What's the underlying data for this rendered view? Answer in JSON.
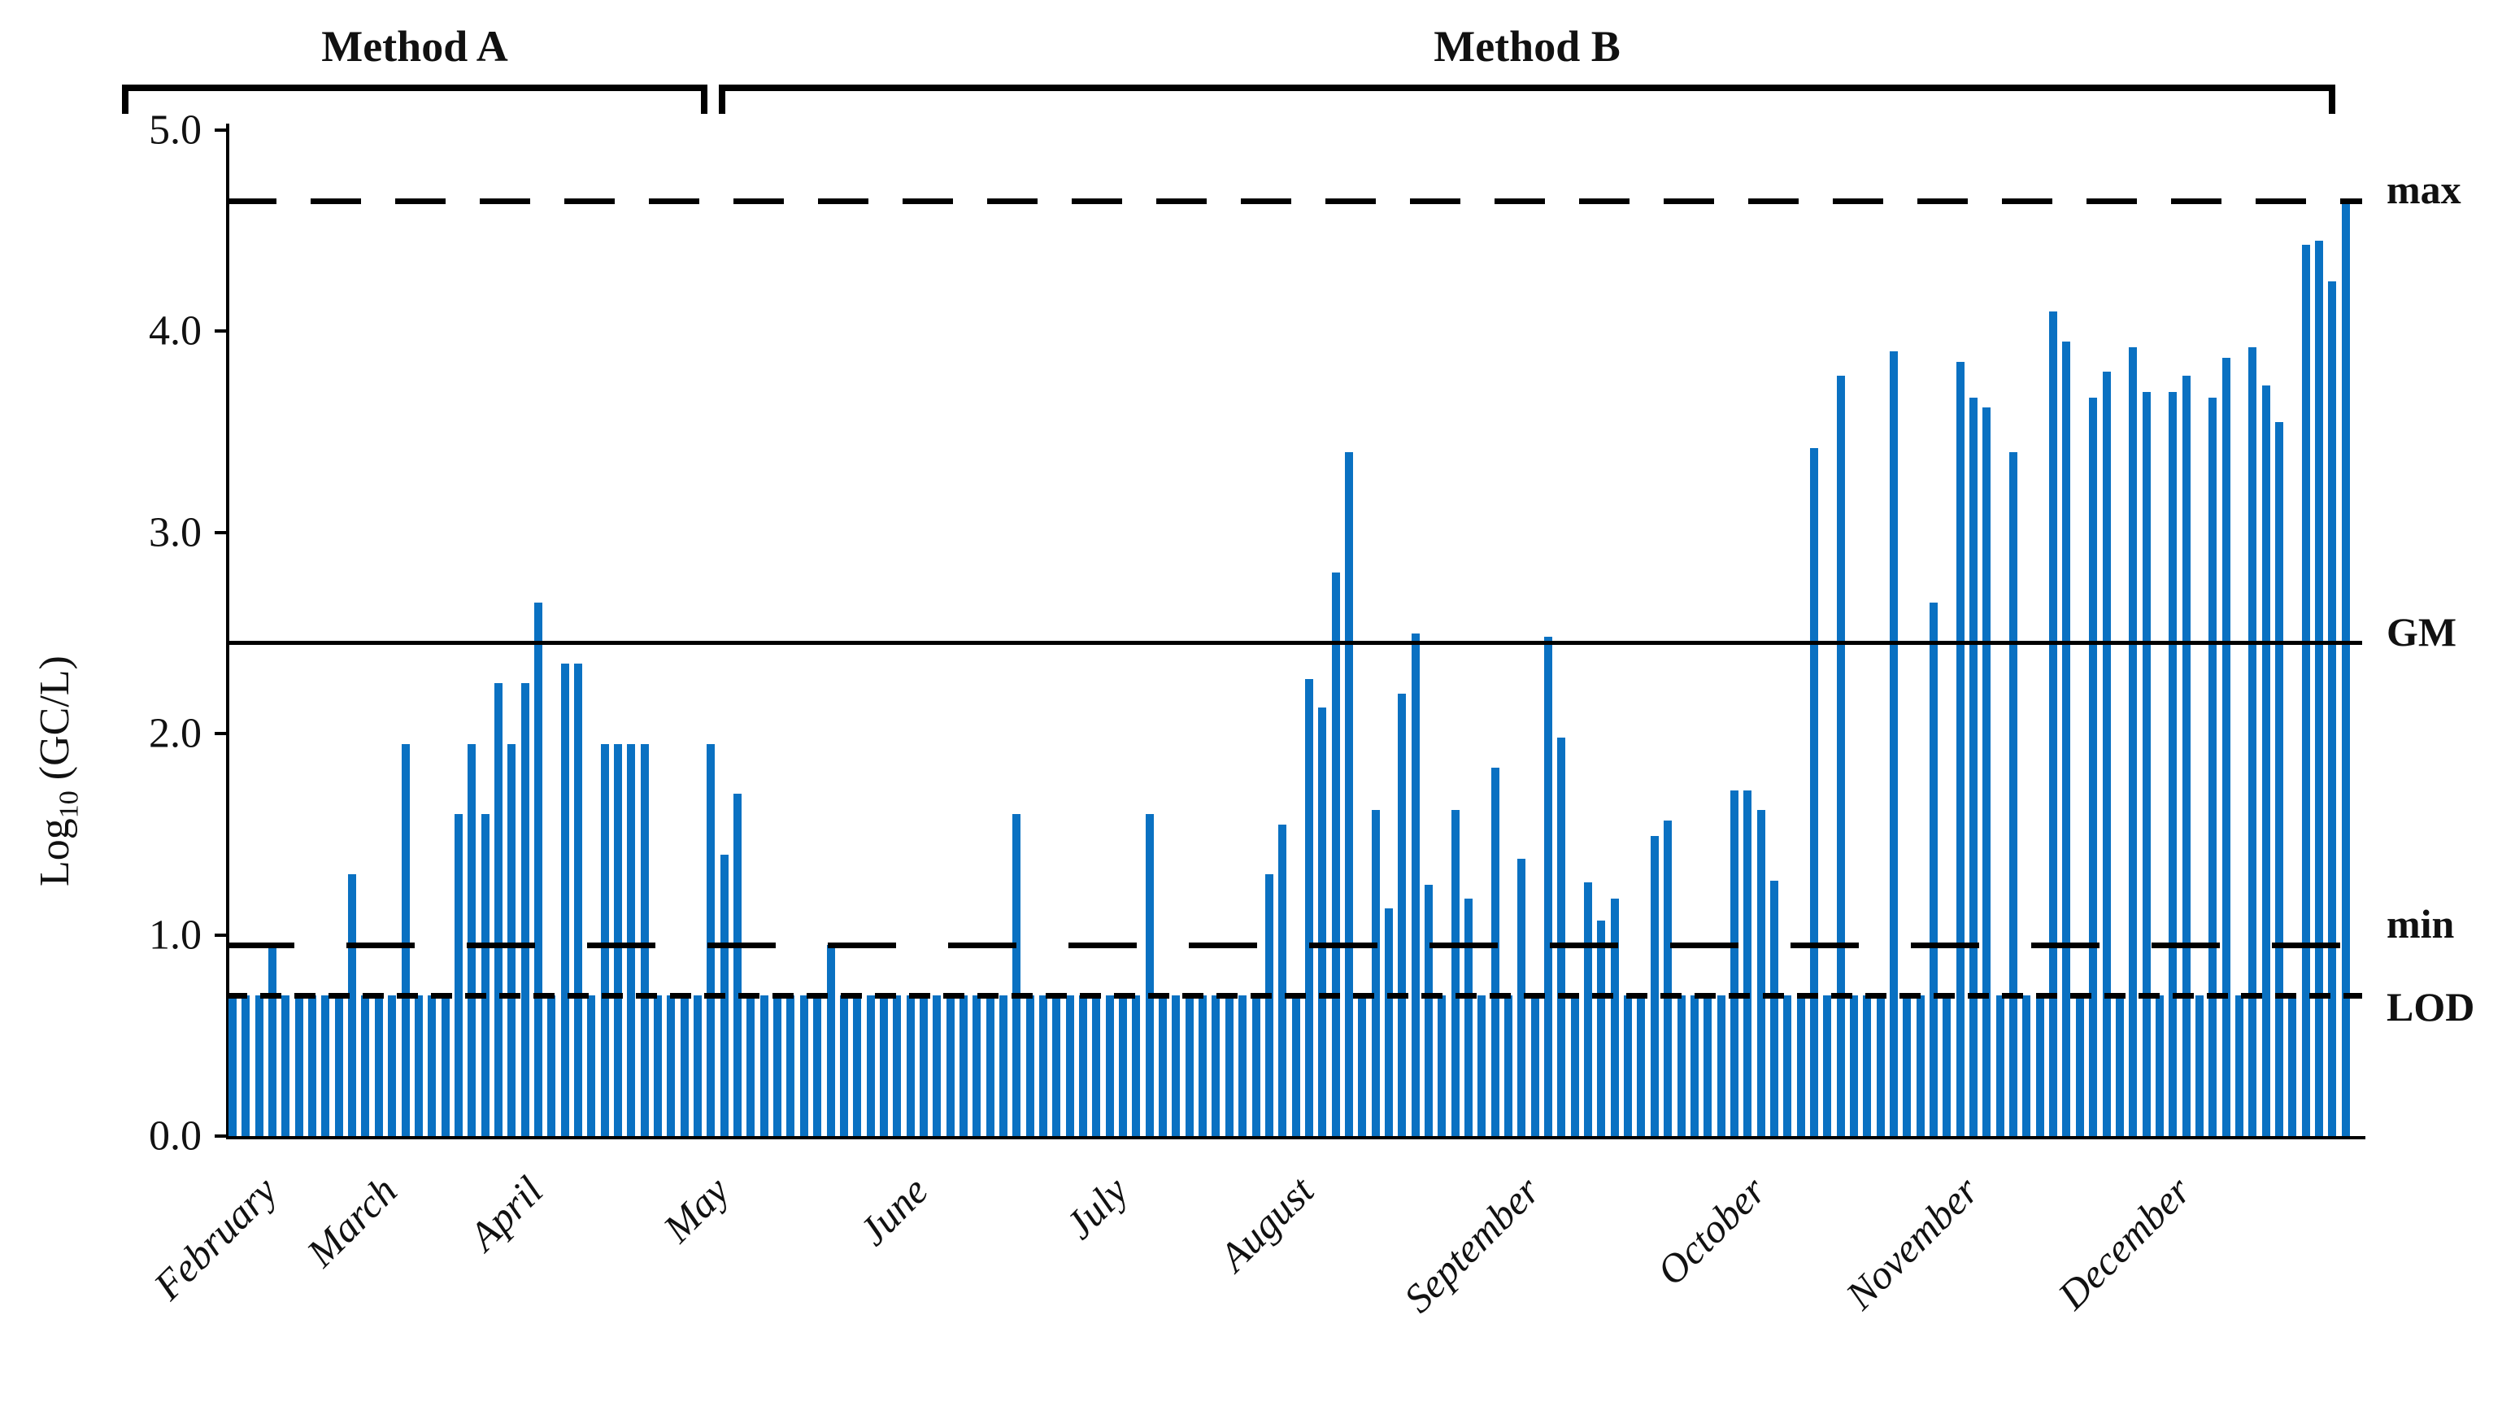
{
  "chart_data": {
    "type": "bar",
    "title": "",
    "ylabel": "Log10 (GC/L)",
    "ylabel_parts": {
      "prefix": "Log",
      "sub": "10",
      "suffix": " (GC/L)"
    },
    "ylim": [
      0,
      5
    ],
    "yticks": [
      {
        "v": 5,
        "label": "5.0"
      },
      {
        "v": 4,
        "label": "4.0"
      },
      {
        "v": 3,
        "label": "3.0"
      },
      {
        "v": 2,
        "label": "2.0"
      },
      {
        "v": 1,
        "label": "1.0"
      },
      {
        "v": 0,
        "label": "0.0"
      }
    ],
    "bar_color": "#0a71c2",
    "grid": false,
    "legend_position": "none",
    "categories": [
      "February",
      "March",
      "April",
      "May",
      "June",
      "July",
      "August",
      "September",
      "October",
      "November",
      "December"
    ],
    "months": [
      {
        "label": "February",
        "values": [
          0.7,
          0.7,
          0.7,
          0.95,
          0.7,
          0.7,
          0.7,
          0.7,
          0.7
        ]
      },
      {
        "label": "March",
        "values": [
          1.3,
          0.7,
          0.7,
          0.7,
          1.95,
          0.7,
          0.7,
          0.7,
          1.6,
          1.95,
          1.6
        ]
      },
      {
        "label": "April",
        "values": [
          2.25,
          1.95,
          2.25,
          2.65,
          0.7,
          2.35,
          2.35,
          0.7,
          1.95,
          1.95,
          1.95,
          1.95,
          0.7,
          0.7
        ]
      },
      {
        "label": "May",
        "values": [
          0.7,
          0.7,
          1.95,
          1.4,
          1.7,
          0.7,
          0.7,
          0.7,
          0.7,
          0.7,
          0.7,
          0.95,
          0.7,
          0.7,
          0.7
        ]
      },
      {
        "label": "June",
        "values": [
          0.7,
          0.7,
          0.7,
          0.7,
          0.7,
          0.7,
          0.7,
          0.7,
          0.7,
          0.7,
          1.6,
          0.7,
          0.7,
          0.7,
          0.7
        ]
      },
      {
        "label": "July",
        "values": [
          0.7,
          0.7,
          0.7,
          0.7,
          0.7,
          1.6,
          0.7,
          0.7,
          0.7,
          0.7,
          0.7,
          0.7,
          0.7,
          0.7
        ]
      },
      {
        "label": "August",
        "values": [
          1.3,
          1.55,
          0.7,
          2.27,
          2.13,
          2.8,
          3.4,
          0.7,
          1.62,
          1.13,
          2.2,
          2.5,
          1.25,
          0.7,
          1.62,
          1.18,
          0.7
        ]
      },
      {
        "label": "September",
        "values": [
          1.83,
          0.7,
          1.38,
          0.7,
          2.48,
          1.98,
          0.7,
          1.26,
          1.07,
          1.18,
          0.7,
          0.7,
          1.49,
          1.57,
          0.7,
          0.7,
          0.7
        ]
      },
      {
        "label": "October",
        "values": [
          0.7,
          1.72,
          1.72,
          1.62,
          1.27,
          0.7,
          0.7,
          3.42,
          0.7,
          3.78,
          0.7,
          0.7,
          0.7,
          3.9,
          0.7,
          0.7
        ]
      },
      {
        "label": "November",
        "values": [
          2.65,
          0.7,
          3.85,
          3.67,
          3.62,
          0.7,
          3.4,
          0.7,
          0.7,
          4.1,
          3.95,
          0.7,
          3.67,
          3.8,
          0.7,
          3.92
        ]
      },
      {
        "label": "December",
        "values": [
          3.7,
          0.7,
          3.7,
          3.78,
          0.7,
          3.67,
          3.87,
          0.7,
          3.92,
          3.73,
          3.55,
          0.7,
          4.43,
          4.45,
          4.25,
          4.64
        ]
      }
    ],
    "ref_lines": [
      {
        "name": "max",
        "label": "max",
        "value": 4.65,
        "style": "dash-long"
      },
      {
        "name": "GM",
        "label": "GM",
        "value": 2.45,
        "style": "solid"
      },
      {
        "name": "min",
        "label": "min",
        "value": 0.95,
        "style": "dash-min"
      },
      {
        "name": "LOD",
        "label": "LOD",
        "value": 0.7,
        "style": "dash-short"
      }
    ],
    "brackets": [
      {
        "name": "method-a",
        "label": "Method A",
        "x1": 150,
        "x2": 870
      },
      {
        "name": "method-b",
        "label": "Method B",
        "x1": 884,
        "x2": 2872
      }
    ]
  }
}
